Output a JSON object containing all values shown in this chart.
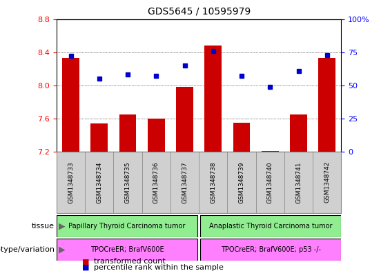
{
  "title": "GDS5645 / 10595979",
  "samples": [
    "GSM1348733",
    "GSM1348734",
    "GSM1348735",
    "GSM1348736",
    "GSM1348737",
    "GSM1348738",
    "GSM1348739",
    "GSM1348740",
    "GSM1348741",
    "GSM1348742"
  ],
  "bar_values": [
    8.33,
    7.54,
    7.65,
    7.6,
    7.98,
    8.48,
    7.55,
    7.21,
    7.65,
    8.33
  ],
  "percentile_values": [
    72,
    55,
    58,
    57,
    65,
    76,
    57,
    49,
    61,
    73
  ],
  "ylim": [
    7.2,
    8.8
  ],
  "yticks": [
    7.2,
    7.6,
    8.0,
    8.4,
    8.8
  ],
  "y2lim": [
    0,
    100
  ],
  "y2ticks": [
    0,
    25,
    50,
    75,
    100
  ],
  "bar_color": "#cc0000",
  "percentile_color": "#0000cc",
  "bar_bottom": 7.2,
  "tissue_group1_label": "Papillary Thyroid Carcinoma tumor",
  "tissue_group2_label": "Anaplastic Thyroid Carcinoma tumor",
  "tissue_color": "#90ee90",
  "genotype_group1_label": "TPOCreER; BrafV600E",
  "genotype_group2_label": "TPOCreER; BrafV600E; p53 -/-",
  "genotype_color": "#ff80ff",
  "legend_red_label": "transformed count",
  "legend_blue_label": "percentile rank within the sample",
  "tissue_label": "tissue",
  "genotype_label": "genotype/variation",
  "tick_bg_color": "#d0d0d0",
  "grid_lines": [
    7.6,
    8.0,
    8.4
  ],
  "n_group1": 5,
  "n_group2": 5
}
